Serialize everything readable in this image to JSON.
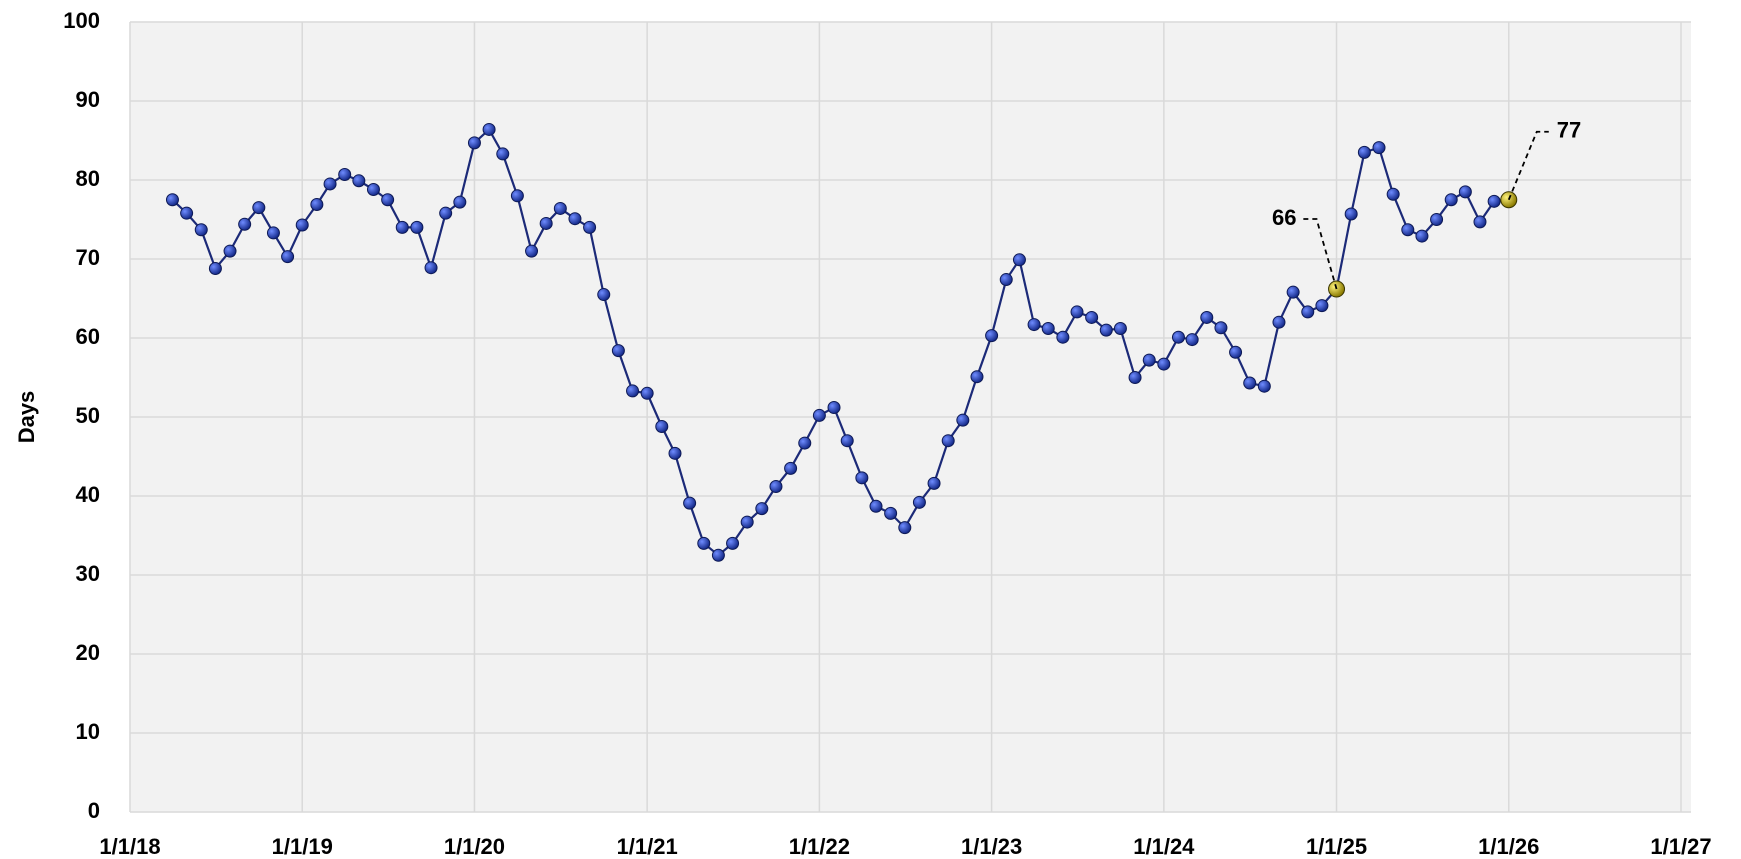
{
  "chart_data": {
    "type": "line",
    "ylabel": "Days",
    "x": [
      "2018-04-01",
      "2018-05-01",
      "2018-06-01",
      "2018-07-01",
      "2018-08-01",
      "2018-09-01",
      "2018-10-01",
      "2018-11-01",
      "2018-12-01",
      "2019-01-01",
      "2019-02-01",
      "2019-03-01",
      "2019-04-01",
      "2019-05-01",
      "2019-06-01",
      "2019-07-01",
      "2019-08-01",
      "2019-09-01",
      "2019-10-01",
      "2019-11-01",
      "2019-12-01",
      "2020-01-01",
      "2020-02-01",
      "2020-03-01",
      "2020-04-01",
      "2020-05-01",
      "2020-06-01",
      "2020-07-01",
      "2020-08-01",
      "2020-09-01",
      "2020-10-01",
      "2020-11-01",
      "2020-12-01",
      "2021-01-01",
      "2021-02-01",
      "2021-03-01",
      "2021-04-01",
      "2021-05-01",
      "2021-06-01",
      "2021-07-01",
      "2021-08-01",
      "2021-09-01",
      "2021-10-01",
      "2021-11-01",
      "2021-12-01",
      "2022-01-01",
      "2022-02-01",
      "2022-03-01",
      "2022-04-01",
      "2022-05-01",
      "2022-06-01",
      "2022-07-01",
      "2022-08-01",
      "2022-09-01",
      "2022-10-01",
      "2022-11-01",
      "2022-12-01",
      "2023-01-01",
      "2023-02-01",
      "2023-03-01",
      "2023-04-01",
      "2023-05-01",
      "2023-06-01",
      "2023-07-01",
      "2023-08-01",
      "2023-09-01",
      "2023-10-01",
      "2023-11-01",
      "2023-12-01",
      "2024-01-01",
      "2024-02-01",
      "2024-03-01",
      "2024-04-01",
      "2024-05-01",
      "2024-06-01",
      "2024-07-01",
      "2024-08-01",
      "2024-09-01",
      "2024-10-01",
      "2024-11-01",
      "2024-12-01",
      "2025-01-01",
      "2025-02-01",
      "2025-03-01",
      "2025-04-01",
      "2025-05-01",
      "2025-06-01",
      "2025-07-01",
      "2025-08-01",
      "2025-09-01",
      "2025-10-01",
      "2025-11-01",
      "2025-12-01",
      "2026-01-01"
    ],
    "series": [
      {
        "color": "#1c2a78",
        "marker_color": "#2443b8",
        "highlight_color": "#d4c21a",
        "values": [
          77.5,
          75.8,
          73.7,
          68.8,
          71.0,
          74.4,
          76.5,
          73.3,
          70.3,
          74.3,
          76.9,
          79.5,
          80.7,
          79.9,
          78.8,
          77.5,
          74.0,
          74.0,
          68.9,
          75.8,
          77.2,
          84.7,
          86.4,
          83.3,
          78.0,
          71.0,
          74.5,
          76.4,
          75.1,
          74.0,
          65.5,
          58.4,
          53.3,
          53.0,
          48.8,
          45.4,
          39.1,
          34.0,
          32.5,
          34.0,
          36.7,
          38.4,
          41.2,
          43.5,
          46.7,
          50.2,
          51.2,
          47.0,
          42.3,
          38.7,
          37.8,
          36.0,
          39.2,
          41.6,
          47.0,
          49.6,
          55.1,
          60.3,
          67.4,
          69.9,
          61.7,
          61.2,
          60.1,
          63.3,
          62.6,
          61.0,
          61.2,
          55.0,
          57.2,
          56.7,
          60.1,
          59.8,
          62.6,
          61.3,
          58.2,
          54.3,
          53.9,
          62.0,
          65.8,
          63.3,
          64.1,
          66.2,
          75.7,
          83.5,
          84.1,
          78.2,
          73.7,
          72.9,
          75.0,
          77.5,
          78.5,
          74.7,
          77.3,
          77.5
        ],
        "value_labels": [
          null,
          null,
          null,
          null,
          null,
          null,
          null,
          null,
          null,
          null,
          null,
          null,
          null,
          null,
          null,
          null,
          null,
          null,
          null,
          null,
          null,
          null,
          null,
          null,
          null,
          null,
          null,
          null,
          null,
          null,
          null,
          null,
          null,
          null,
          null,
          null,
          null,
          null,
          null,
          null,
          null,
          null,
          null,
          null,
          null,
          null,
          null,
          null,
          null,
          null,
          null,
          null,
          null,
          null,
          null,
          null,
          null,
          null,
          null,
          null,
          null,
          null,
          null,
          null,
          null,
          null,
          null,
          null,
          null,
          null,
          null,
          null,
          null,
          null,
          null,
          null,
          null,
          null,
          null,
          null,
          null,
          "66",
          null,
          null,
          null,
          null,
          null,
          null,
          null,
          null,
          null,
          null,
          null,
          "77"
        ]
      }
    ],
    "xlim": [
      "2018-01-01",
      "2027-01-01"
    ],
    "xticks": [
      {
        "value": "2018-01-01",
        "label": "1/1/18"
      },
      {
        "value": "2019-01-01",
        "label": "1/1/19"
      },
      {
        "value": "2020-01-01",
        "label": "1/1/20"
      },
      {
        "value": "2021-01-01",
        "label": "1/1/21"
      },
      {
        "value": "2022-01-01",
        "label": "1/1/22"
      },
      {
        "value": "2023-01-01",
        "label": "1/1/23"
      },
      {
        "value": "2024-01-01",
        "label": "1/1/24"
      },
      {
        "value": "2025-01-01",
        "label": "1/1/25"
      },
      {
        "value": "2026-01-01",
        "label": "1/1/26"
      },
      {
        "value": "2027-01-01",
        "label": "1/1/27"
      }
    ],
    "ylim": [
      0,
      100
    ],
    "yticks": [
      0,
      10,
      20,
      30,
      40,
      50,
      60,
      70,
      80,
      90,
      100
    ],
    "grid": true
  }
}
